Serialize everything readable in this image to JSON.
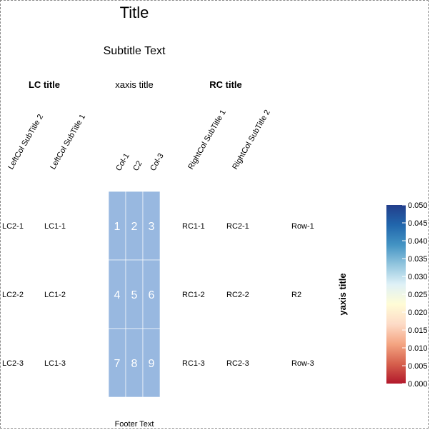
{
  "chart_data": {
    "type": "heatmap",
    "title": "Title",
    "subtitle": "Subtitle Text",
    "xlabel": "xaxis title",
    "ylabel": "yaxis title",
    "footer": "Footer Text",
    "columns": [
      "Col-1",
      "C2",
      "Col-3"
    ],
    "rows": [
      "Row-1",
      "R2",
      "Row-3"
    ],
    "cell_values": [
      [
        1,
        2,
        3
      ],
      [
        4,
        5,
        6
      ],
      [
        7,
        8,
        9
      ]
    ],
    "cell_color": "#98b8e0",
    "left_annotation": {
      "title": "LC title",
      "columns": [
        {
          "subtitle": "LeftCol SubTitle 2",
          "values": [
            "LC2-1",
            "LC2-2",
            "LC2-3"
          ]
        },
        {
          "subtitle": "LeftCol SubTitle 1",
          "values": [
            "LC1-1",
            "LC1-2",
            "LC1-3"
          ]
        }
      ]
    },
    "right_annotation": {
      "title": "RC title",
      "columns": [
        {
          "subtitle": "RightCol SubTitle 1",
          "values": [
            "RC1-1",
            "RC1-2",
            "RC1-3"
          ]
        },
        {
          "subtitle": "RightCol SubTitle 2",
          "values": [
            "RC2-1",
            "RC2-2",
            "RC2-3"
          ]
        }
      ]
    },
    "colorbar": {
      "min": 0,
      "max": 0.05,
      "ticks": [
        "0.000",
        "0.005",
        "0.010",
        "0.015",
        "0.020",
        "0.025",
        "0.030",
        "0.035",
        "0.040",
        "0.045",
        "0.050"
      ],
      "colors": [
        "#b2182b",
        "#d6604d",
        "#f4a582",
        "#fddbc7",
        "#fffcd6",
        "#dff1f7",
        "#92c5de",
        "#4393c3",
        "#2166ac",
        "#233e8b"
      ]
    }
  }
}
